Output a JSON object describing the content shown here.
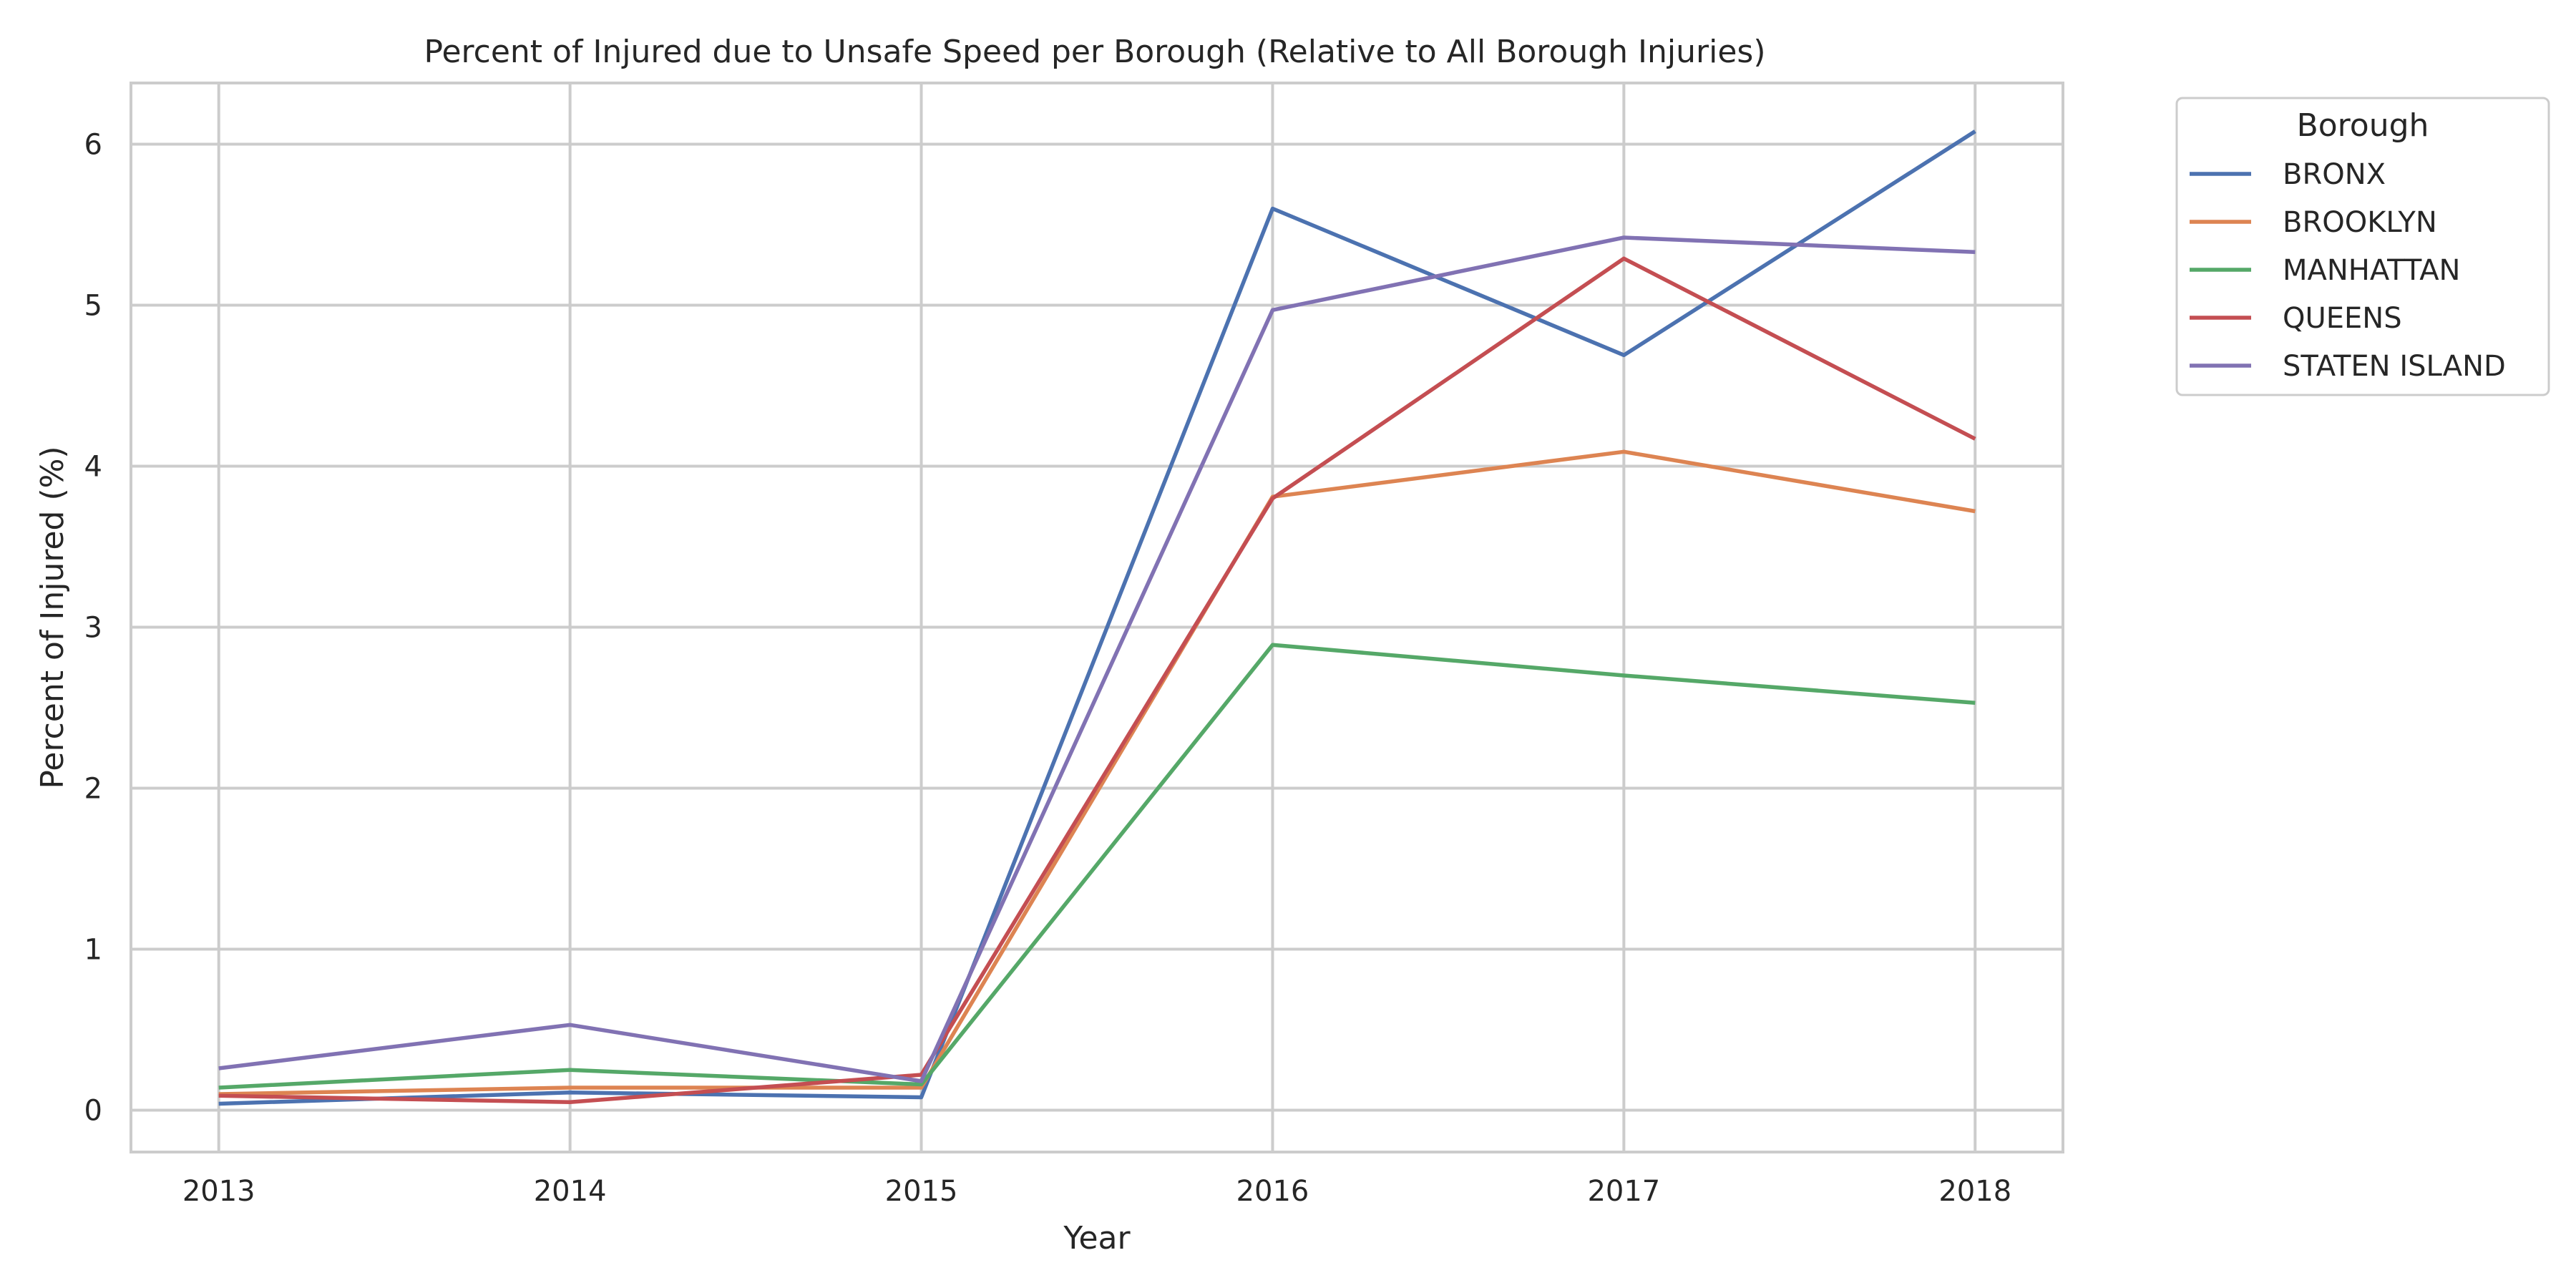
{
  "chart_data": {
    "type": "line",
    "title": "Percent of Injured due to Unsafe Speed per Borough (Relative to All Borough Injuries)",
    "xlabel": "Year",
    "ylabel": "Percent of Injured (%)",
    "x": [
      2013,
      2014,
      2015,
      2016,
      2017,
      2018
    ],
    "x_tick_labels": [
      "2013",
      "2014",
      "2015",
      "2016",
      "2017",
      "2018"
    ],
    "y_ticks": [
      0,
      1,
      2,
      3,
      4,
      5,
      6
    ],
    "y_tick_labels": [
      "0",
      "1",
      "2",
      "3",
      "4",
      "5",
      "6"
    ],
    "xlim": [
      2012.75,
      2018.25
    ],
    "ylim": [
      -0.26,
      6.38
    ],
    "grid": true,
    "legend": {
      "title": "Borough",
      "placement": "outside-top-right"
    },
    "series": [
      {
        "name": "BRONX",
        "color": "#4c72b0",
        "values": [
          0.04,
          0.11,
          0.08,
          5.6,
          4.69,
          6.08
        ]
      },
      {
        "name": "BROOKLYN",
        "color": "#dd8452",
        "values": [
          0.1,
          0.14,
          0.14,
          3.81,
          4.09,
          3.72
        ]
      },
      {
        "name": "MANHATTAN",
        "color": "#55a868",
        "values": [
          0.14,
          0.25,
          0.16,
          2.89,
          2.7,
          2.53
        ]
      },
      {
        "name": "QUEENS",
        "color": "#c44e52",
        "values": [
          0.09,
          0.05,
          0.22,
          3.8,
          5.29,
          4.17
        ]
      },
      {
        "name": "STATEN ISLAND",
        "color": "#8172b3",
        "values": [
          0.26,
          0.53,
          0.18,
          4.97,
          5.42,
          5.33
        ]
      }
    ]
  }
}
